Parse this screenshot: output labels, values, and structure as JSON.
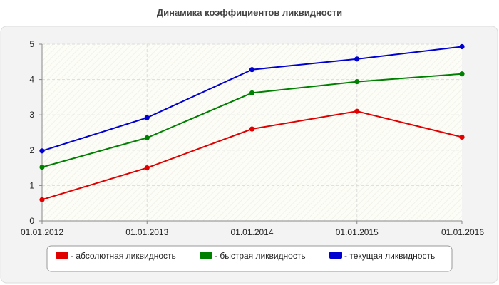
{
  "chart_data": {
    "type": "line",
    "title": "Динамика коэффициентов ликвидности",
    "xlabel": "",
    "ylabel": "",
    "categories": [
      "01.01.2012",
      "01.01.2013",
      "01.01.2014",
      "01.01.2015",
      "01.01.2016"
    ],
    "ylim": [
      0,
      5
    ],
    "yticks": [
      "0",
      "1",
      "2",
      "3",
      "4",
      "5"
    ],
    "grid": true,
    "legend_position": "bottom",
    "series": [
      {
        "name": "- абсолютная ликвидность",
        "color": "#e00000",
        "values": [
          0.6,
          1.5,
          2.6,
          3.1,
          2.37
        ]
      },
      {
        "name": "- быстрая ликвидность",
        "color": "#008000",
        "values": [
          1.52,
          2.35,
          3.62,
          3.94,
          4.16
        ]
      },
      {
        "name": "- текущая ликвидность",
        "color": "#0000d0",
        "values": [
          1.98,
          2.92,
          4.28,
          4.58,
          4.93
        ]
      }
    ]
  }
}
